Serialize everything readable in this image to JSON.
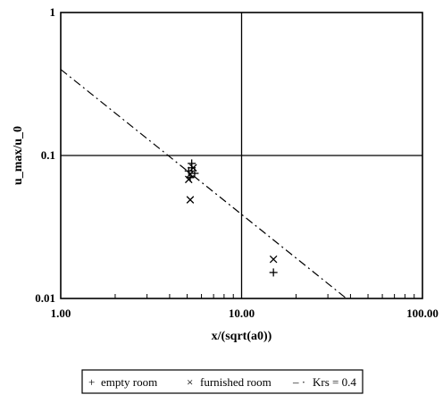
{
  "chart_data": {
    "type": "scatter",
    "x_scale": "log",
    "y_scale": "log",
    "xlabel": "x/(sqrt(a0))",
    "ylabel": "u_max/u_0",
    "xlim": [
      1,
      100
    ],
    "ylim": [
      0.01,
      1
    ],
    "x_ticks": [
      {
        "value": 1,
        "label": "1.00"
      },
      {
        "value": 10,
        "label": "10.00"
      },
      {
        "value": 100,
        "label": "100.00"
      }
    ],
    "y_ticks": [
      {
        "value": 0.01,
        "label": "0.01"
      },
      {
        "value": 0.1,
        "label": "0.1"
      },
      {
        "value": 1,
        "label": "1"
      }
    ],
    "grid": "major",
    "legend_position": "bottom",
    "series": [
      {
        "name": "empty room",
        "marker": "+",
        "points": [
          {
            "x": 5.1,
            "y": 0.078
          },
          {
            "x": 5.3,
            "y": 0.082
          },
          {
            "x": 5.5,
            "y": 0.075
          },
          {
            "x": 5.3,
            "y": 0.088
          },
          {
            "x": 5.2,
            "y": 0.07
          },
          {
            "x": 15.0,
            "y": 0.0152
          }
        ]
      },
      {
        "name": "furnished room",
        "marker": "x",
        "points": [
          {
            "x": 5.2,
            "y": 0.074
          },
          {
            "x": 5.4,
            "y": 0.082
          },
          {
            "x": 5.1,
            "y": 0.068
          },
          {
            "x": 5.2,
            "y": 0.049
          },
          {
            "x": 15.0,
            "y": 0.0188
          }
        ]
      },
      {
        "name": "Krs = 0.4",
        "style": "dash-dot",
        "line": [
          {
            "x": 1,
            "y": 0.4
          },
          {
            "x": 38,
            "y": 0.01
          }
        ]
      }
    ],
    "legend": [
      {
        "symbol": "+",
        "label": "empty room"
      },
      {
        "symbol": "×",
        "label": "furnished room"
      },
      {
        "symbol": "– ·",
        "label": "Krs = 0.4"
      }
    ]
  }
}
